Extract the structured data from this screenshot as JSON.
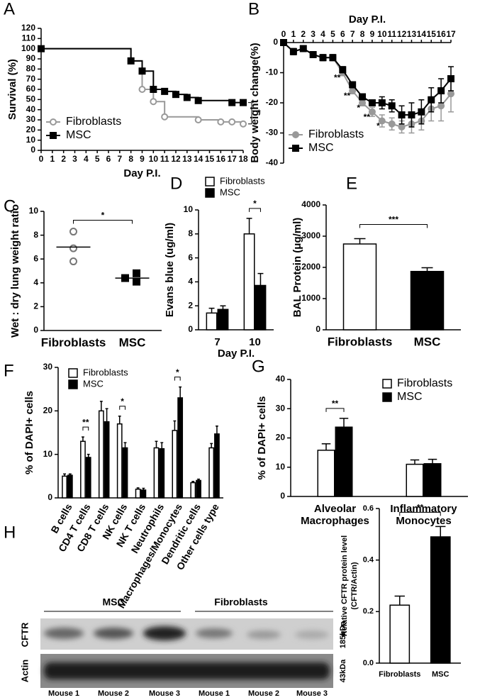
{
  "chart_data": [
    {
      "panel": "A",
      "type": "line",
      "step": true,
      "xlabel": "Day P.I.",
      "ylabel": "Survival (%)",
      "xlim": [
        0,
        18
      ],
      "xticks": [
        0,
        1,
        2,
        3,
        4,
        5,
        6,
        7,
        8,
        9,
        10,
        11,
        12,
        13,
        14,
        15,
        16,
        17,
        18
      ],
      "ylim": [
        0,
        120
      ],
      "yticks": [
        0,
        10,
        20,
        30,
        40,
        50,
        60,
        70,
        80,
        90,
        100,
        110,
        120
      ],
      "legend": "lower left",
      "series": [
        {
          "name": "Fibroblasts",
          "color": "#999999",
          "marker": "circle",
          "filled": false,
          "x": [
            0,
            8,
            9,
            10,
            11,
            14,
            16,
            17,
            18
          ],
          "values": [
            100,
            88,
            60,
            48,
            33,
            30,
            28,
            28,
            26
          ]
        },
        {
          "name": "MSC",
          "color": "#000000",
          "marker": "square",
          "filled": true,
          "x": [
            0,
            8,
            9,
            10,
            11,
            12,
            13,
            14,
            17,
            18
          ],
          "values": [
            100,
            88,
            78,
            60,
            58,
            55,
            52,
            49,
            47,
            47
          ]
        }
      ],
      "significance": [
        {
          "label": "*"
        }
      ]
    },
    {
      "panel": "B",
      "type": "line",
      "x_axis": "top",
      "xlabel": "Day P.I.",
      "ylabel": "Body weight change(%)",
      "x": [
        0,
        1,
        2,
        3,
        4,
        5,
        6,
        7,
        8,
        9,
        10,
        11,
        12,
        13,
        14,
        15,
        16,
        17
      ],
      "xlim": [
        0,
        17
      ],
      "xticks": [
        0,
        1,
        2,
        3,
        4,
        5,
        6,
        7,
        8,
        9,
        10,
        11,
        12,
        13,
        14,
        15,
        16,
        17
      ],
      "ylim": [
        -40,
        0
      ],
      "yticks": [
        0,
        -10,
        -20,
        -30,
        -40
      ],
      "legend": "lower left",
      "series": [
        {
          "name": "Fibroblasts",
          "color": "#999999",
          "marker": "circle",
          "filled": true,
          "values": [
            0,
            -3,
            -2,
            -4,
            -5,
            -5,
            -10,
            -16,
            -20,
            -23,
            -26,
            -27,
            -28,
            -27,
            -26,
            -22,
            -21,
            -17
          ],
          "errors": [
            0,
            1,
            1,
            1,
            1,
            1,
            1,
            1,
            1,
            1.5,
            2,
            2,
            2,
            3,
            3,
            4,
            5,
            6
          ]
        },
        {
          "name": "MSC",
          "color": "#000000",
          "marker": "square",
          "filled": true,
          "values": [
            0,
            -3,
            -2,
            -4,
            -5,
            -5,
            -9,
            -14,
            -18,
            -20,
            -20,
            -21,
            -24,
            -24,
            -23,
            -19,
            -16,
            -12
          ],
          "errors": [
            0,
            1,
            1,
            1,
            1,
            1,
            1,
            1,
            1,
            1,
            2,
            2,
            3,
            4,
            4,
            4,
            4,
            4
          ]
        }
      ],
      "annotations": [
        {
          "text": "**",
          "x": 6
        },
        {
          "text": "**",
          "x": 7
        },
        {
          "text": "*",
          "x": 8
        },
        {
          "text": "**",
          "x": 9
        },
        {
          "text": "*",
          "x": 10
        }
      ]
    },
    {
      "panel": "C",
      "type": "strip",
      "ylabel": "Wet : dry lung weight ratio",
      "categories": [
        "Fibroblasts",
        "MSC"
      ],
      "values": [
        [
          8.3,
          6.9,
          5.8
        ],
        [
          4.8,
          4.4,
          4.1
        ]
      ],
      "means": [
        7.0,
        4.4
      ],
      "markers": [
        "circle",
        "square"
      ],
      "colors": [
        "#777777",
        "#000000"
      ],
      "ylim": [
        0,
        10
      ],
      "yticks": [
        0,
        2,
        4,
        6,
        8,
        10
      ],
      "significance": [
        {
          "label": "*",
          "categories": [
            0,
            1
          ]
        }
      ]
    },
    {
      "panel": "D",
      "type": "bar",
      "xlabel": "Day P.I.",
      "ylabel": "Evans blue (ug/ml)",
      "categories": [
        "7",
        "10"
      ],
      "ylim": [
        0,
        10
      ],
      "yticks": [
        0,
        2,
        4,
        6,
        8,
        10
      ],
      "legend": "top",
      "series": [
        {
          "name": "Fibroblasts",
          "color": "#ffffff",
          "values": [
            1.4,
            8.0
          ],
          "errors": [
            0.4,
            1.3
          ]
        },
        {
          "name": "MSC",
          "color": "#000000",
          "values": [
            1.7,
            3.7
          ],
          "errors": [
            0.3,
            1.0
          ]
        }
      ],
      "significance": [
        {
          "label": "*",
          "category": 1
        }
      ]
    },
    {
      "panel": "E",
      "type": "bar",
      "ylabel": "BAL Protein (μg/ml)",
      "categories": [
        "Fibroblasts",
        "MSC"
      ],
      "colors": [
        "#ffffff",
        "#000000"
      ],
      "values": [
        2750,
        1870
      ],
      "errors": [
        170,
        120
      ],
      "ylim": [
        0,
        4000
      ],
      "yticks": [
        0,
        1000,
        2000,
        3000,
        4000
      ],
      "significance": [
        {
          "label": "***",
          "categories": [
            0,
            1
          ]
        }
      ]
    },
    {
      "panel": "F",
      "type": "bar",
      "ylabel": "% of DAPI+ cells",
      "rotate_labels": true,
      "categories": [
        "B cells",
        "CD4 T cells",
        "CD8 T cells",
        "NK cells",
        "NK T cells",
        "Neutrophils",
        "Macrophages/Monocytes",
        "Dendritic cells",
        "Other cells type"
      ],
      "ylim": [
        0,
        30
      ],
      "yticks": [
        0,
        10,
        20,
        30
      ],
      "legend": "upper left",
      "series": [
        {
          "name": "Fibroblasts",
          "color": "#ffffff",
          "values": [
            5,
            13,
            20,
            17,
            2,
            11.5,
            15.5,
            3.5,
            11.5
          ],
          "errors": [
            0.5,
            1,
            2.2,
            1.8,
            0.3,
            1.5,
            2.2,
            0.3,
            1
          ]
        },
        {
          "name": "MSC",
          "color": "#000000",
          "values": [
            5.2,
            9.3,
            17.5,
            11.5,
            1.8,
            11.3,
            23,
            4,
            14.7
          ],
          "errors": [
            0.3,
            0.7,
            3,
            1.2,
            0.4,
            1.4,
            2.5,
            0.3,
            1.8
          ]
        }
      ],
      "significance": [
        {
          "label": "**",
          "category": 1
        },
        {
          "label": "*",
          "category": 3
        },
        {
          "label": "*",
          "category": 6
        }
      ]
    },
    {
      "panel": "G",
      "type": "bar",
      "ylabel": "% of DAPI+ cells",
      "categories": [
        [
          "Alveolar",
          "Macrophages"
        ],
        [
          "Inflammatory",
          "Monocytes"
        ]
      ],
      "ylim": [
        0,
        40
      ],
      "yticks": [
        0,
        10,
        20,
        30,
        40
      ],
      "legend": "upper right",
      "series": [
        {
          "name": "Fibroblasts",
          "color": "#ffffff",
          "values": [
            15.8,
            11
          ],
          "errors": [
            2.2,
            1.5
          ]
        },
        {
          "name": "MSC",
          "color": "#000000",
          "values": [
            23.7,
            11.2
          ],
          "errors": [
            3,
            1.5
          ]
        }
      ],
      "significance": [
        {
          "label": "**",
          "category": 0
        }
      ]
    },
    {
      "type": "bar",
      "ylabel": [
        "Relative CFTR protein level",
        "(CFTR/Actin)"
      ],
      "categories": [
        "Fibroblasts",
        "MSC"
      ],
      "colors": [
        "#ffffff",
        "#000000"
      ],
      "values": [
        0.225,
        0.49
      ],
      "errors": [
        0.035,
        0.04
      ],
      "ylim": [
        0,
        0.6
      ],
      "yticks": [
        {
          "value": 0,
          "label": "0.0"
        },
        0.2,
        0.4,
        0.6
      ],
      "significance": [
        {
          "label": "**",
          "categories": [
            0,
            1
          ]
        }
      ]
    }
  ],
  "blot": {
    "panel": "H",
    "groups": [
      "MSC",
      "Fibroblasts"
    ],
    "rows": [
      "CFTR",
      "Actin"
    ],
    "sizes": [
      "185kDa",
      "43kDa"
    ],
    "lanes": [
      "Mouse 1",
      "Mouse 2",
      "Mouse 3",
      "Mouse 1",
      "Mouse 2",
      "Mouse 3"
    ]
  }
}
